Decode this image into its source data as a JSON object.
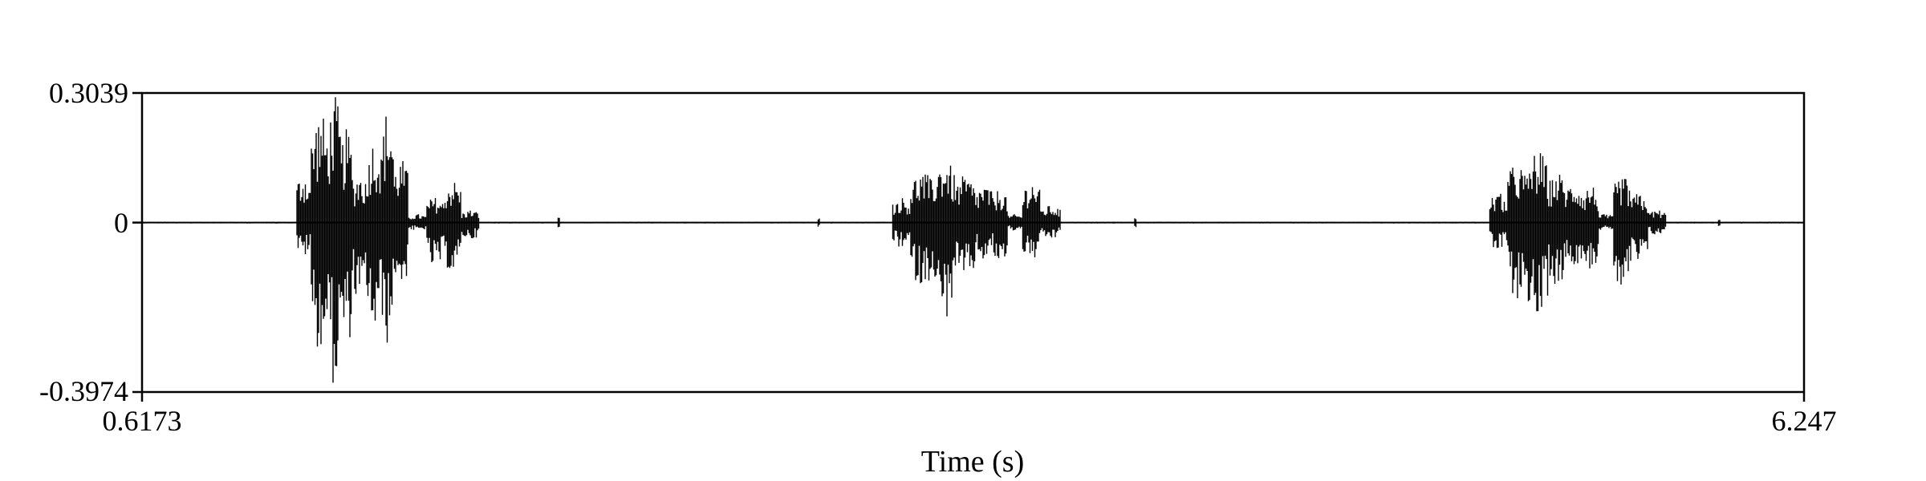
{
  "chart_data": {
    "type": "line",
    "title": "",
    "xlabel": "Time (s)",
    "ylabel": "",
    "xlim": [
      0.6173,
      6.247
    ],
    "ylim": [
      -0.3974,
      0.3039
    ],
    "x_tick_labels": [
      "0.6173",
      "6.247"
    ],
    "y_tick_labels": [
      "0.3039",
      "0",
      "-0.3974"
    ],
    "y_ticks": [
      0.3039,
      0,
      -0.3974
    ],
    "grid": false,
    "legend": "none",
    "line_color": "#000000",
    "series": [
      {
        "segments": [
          {
            "t0": 1.14,
            "t1": 1.19,
            "top": 0.12,
            "bottom": -0.08
          },
          {
            "t0": 1.19,
            "t1": 1.25,
            "top": 0.26,
            "bottom": -0.3
          },
          {
            "t0": 1.25,
            "t1": 1.29,
            "top": 0.3,
            "bottom": -0.39
          },
          {
            "t0": 1.29,
            "t1": 1.33,
            "top": 0.22,
            "bottom": -0.3
          },
          {
            "t0": 1.33,
            "t1": 1.38,
            "top": 0.12,
            "bottom": -0.2
          },
          {
            "t0": 1.38,
            "t1": 1.43,
            "top": 0.2,
            "bottom": -0.27
          },
          {
            "t0": 1.43,
            "t1": 1.47,
            "top": 0.27,
            "bottom": -0.29
          },
          {
            "t0": 1.47,
            "t1": 1.52,
            "top": 0.15,
            "bottom": -0.15
          },
          {
            "t0": 1.52,
            "t1": 1.58,
            "top": 0.02,
            "bottom": -0.02
          },
          {
            "t0": 1.58,
            "t1": 1.64,
            "top": 0.06,
            "bottom": -0.11
          },
          {
            "t0": 1.64,
            "t1": 1.7,
            "top": 0.1,
            "bottom": -0.12
          },
          {
            "t0": 1.7,
            "t1": 1.76,
            "top": 0.03,
            "bottom": -0.04
          },
          {
            "t0": 3.16,
            "t1": 3.22,
            "top": 0.06,
            "bottom": -0.06
          },
          {
            "t0": 3.22,
            "t1": 3.3,
            "top": 0.12,
            "bottom": -0.15
          },
          {
            "t0": 3.3,
            "t1": 3.37,
            "top": 0.15,
            "bottom": -0.23
          },
          {
            "t0": 3.37,
            "t1": 3.44,
            "top": 0.11,
            "bottom": -0.14
          },
          {
            "t0": 3.44,
            "t1": 3.5,
            "top": 0.09,
            "bottom": -0.09
          },
          {
            "t0": 3.5,
            "t1": 3.55,
            "top": 0.08,
            "bottom": -0.1
          },
          {
            "t0": 3.55,
            "t1": 3.6,
            "top": 0.02,
            "bottom": -0.02
          },
          {
            "t0": 3.6,
            "t1": 3.66,
            "top": 0.1,
            "bottom": -0.09
          },
          {
            "t0": 3.66,
            "t1": 3.73,
            "top": 0.04,
            "bottom": -0.04
          },
          {
            "t0": 5.18,
            "t1": 5.24,
            "top": 0.07,
            "bottom": -0.07
          },
          {
            "t0": 5.24,
            "t1": 5.31,
            "top": 0.14,
            "bottom": -0.18
          },
          {
            "t0": 5.31,
            "t1": 5.38,
            "top": 0.17,
            "bottom": -0.24
          },
          {
            "t0": 5.38,
            "t1": 5.44,
            "top": 0.12,
            "bottom": -0.15
          },
          {
            "t0": 5.44,
            "t1": 5.5,
            "top": 0.1,
            "bottom": -0.1
          },
          {
            "t0": 5.5,
            "t1": 5.55,
            "top": 0.09,
            "bottom": -0.11
          },
          {
            "t0": 5.55,
            "t1": 5.6,
            "top": 0.02,
            "bottom": -0.02
          },
          {
            "t0": 5.6,
            "t1": 5.66,
            "top": 0.11,
            "bottom": -0.16
          },
          {
            "t0": 5.66,
            "t1": 5.72,
            "top": 0.07,
            "bottom": -0.1
          },
          {
            "t0": 5.72,
            "t1": 5.78,
            "top": 0.03,
            "bottom": -0.03
          }
        ],
        "clicks": [
          {
            "t": 2.03,
            "amp": 0.012
          },
          {
            "t": 2.91,
            "amp": 0.01
          },
          {
            "t": 3.98,
            "amp": 0.012
          },
          {
            "t": 5.96,
            "amp": 0.01
          }
        ],
        "noise_amplitude": 0.002
      }
    ]
  }
}
